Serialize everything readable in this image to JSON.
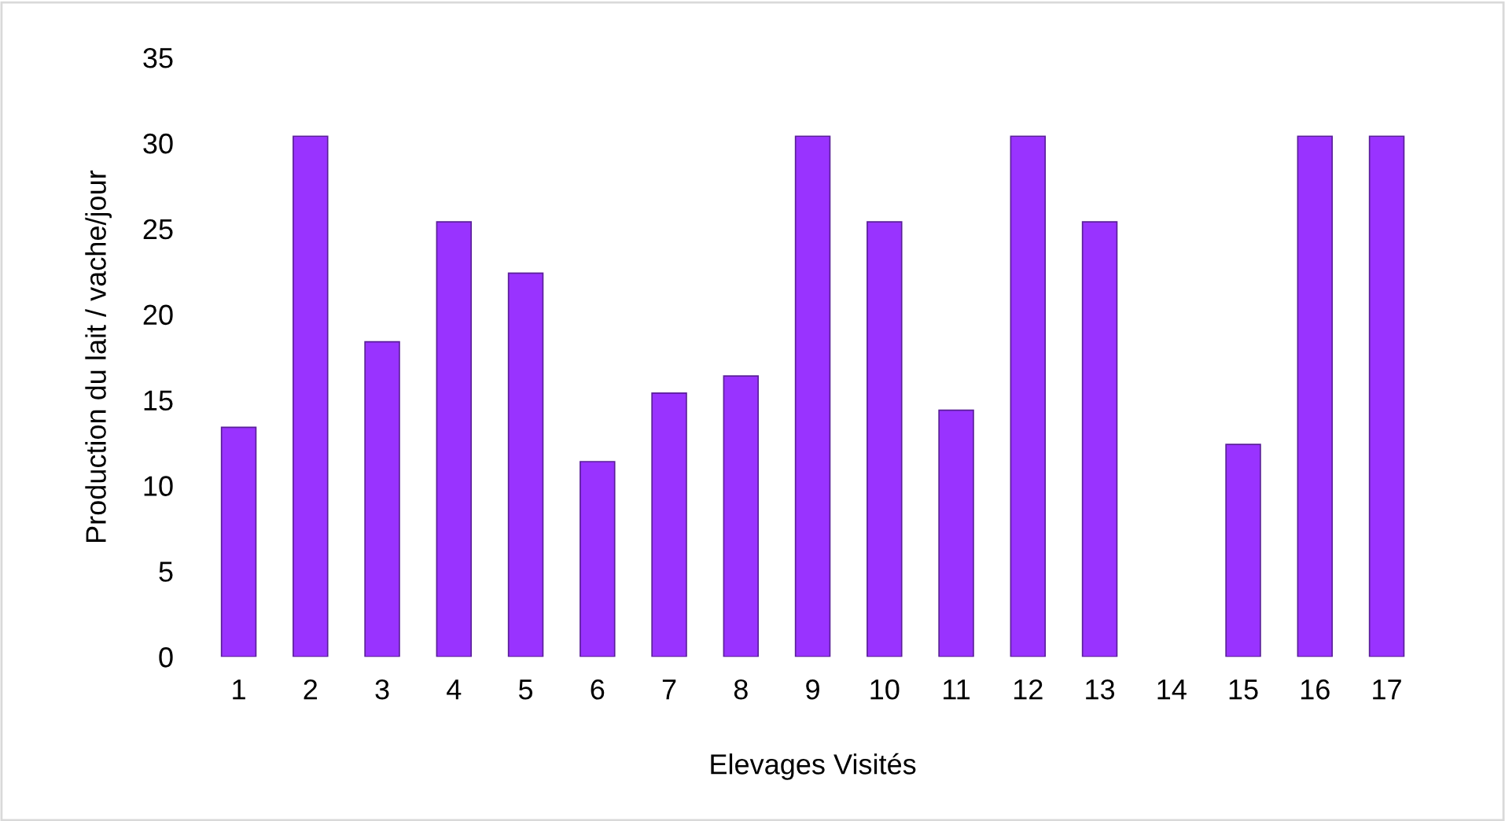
{
  "chart_data": {
    "type": "bar",
    "xlabel": "Elevages Visités",
    "ylabel": "Production du lait / vache/jour",
    "categories": [
      "1",
      "2",
      "3",
      "4",
      "5",
      "6",
      "7",
      "8",
      "9",
      "10",
      "11",
      "12",
      "13",
      "14",
      "15",
      "16",
      "17"
    ],
    "values": [
      13.4,
      30.4,
      18.4,
      25.4,
      22.4,
      11.4,
      15.4,
      16.4,
      30.4,
      25.4,
      14.4,
      30.4,
      25.4,
      null,
      12.4,
      30.4,
      30.4
    ],
    "color": "#9933ff",
    "ylim": [
      0,
      35
    ],
    "yticks": [
      0,
      5,
      10,
      15,
      20,
      25,
      30,
      35
    ],
    "grid": false,
    "legend": false
  }
}
